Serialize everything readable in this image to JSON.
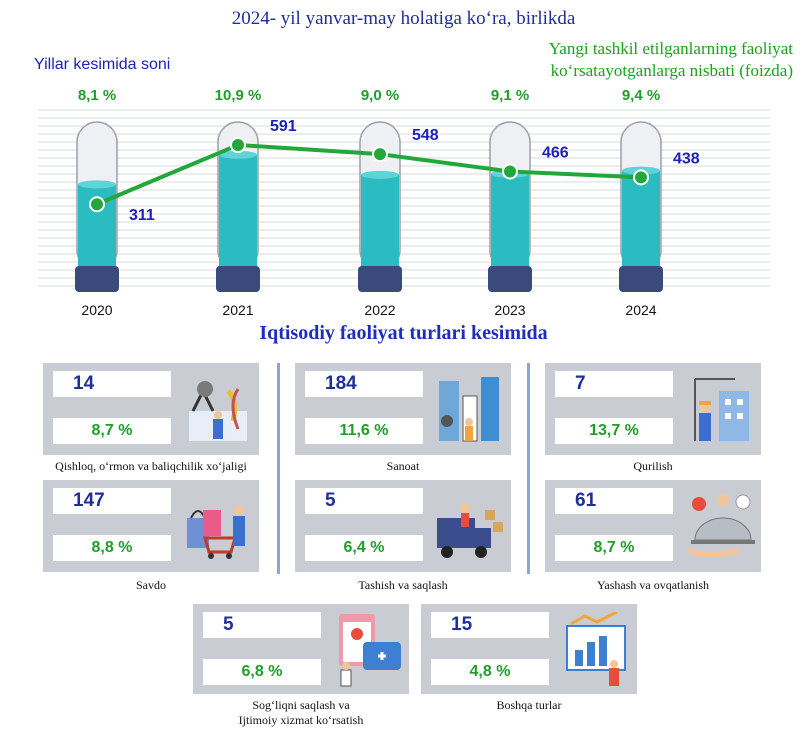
{
  "title": "2024- yil yanvar-may holatiga ko‘ra, birlikda",
  "left_subtitle": "Yillar kesimida soni",
  "right_subtitle": [
    "Yangi tashkil etilganlarning faoliyat",
    "ko‘rsatayotganlarga nisbati (foizda)"
  ],
  "colors": {
    "title": "#1f2f99",
    "percent": "#1f9e2a",
    "line": "#22a83a",
    "tube_fill": "#2bbcc2",
    "tube_base": "#3a4a7a",
    "card_bg": "#c9ccd3"
  },
  "chart_data": {
    "type": "bar",
    "categories": [
      "2020",
      "2021",
      "2022",
      "2023",
      "2024"
    ],
    "series": [
      {
        "values": [
          311,
          591,
          548,
          466,
          438
        ]
      },
      {
        "values": [
          8.1,
          10.9,
          9.0,
          9.1,
          9.4
        ]
      }
    ],
    "value_labels": [
      "311",
      "591",
      "548",
      "466",
      "438"
    ],
    "percent_labels": [
      "8,1 %",
      "10,9 %",
      "9,0 %",
      "9,1 %",
      "9,4 %"
    ],
    "ylim_count": [
      0,
      700
    ],
    "ylim_percent": [
      0,
      14
    ],
    "grid": true
  },
  "section_title": "Iqtisodiy faoliyat turlari kesimida",
  "categories": [
    {
      "count": "14",
      "percent": "8,7 %",
      "label": "Qishloq, o‘rmon va baliqchilik xo‘jaligi",
      "icon": "farming-illustration"
    },
    {
      "count": "184",
      "percent": "11,6 %",
      "label": "Sanoat",
      "icon": "industry-illustration"
    },
    {
      "count": "7",
      "percent": "13,7 %",
      "label": "Qurilish",
      "icon": "construction-illustration"
    },
    {
      "count": "147",
      "percent": "8,8 %",
      "label": "Savdo",
      "icon": "shopping-illustration"
    },
    {
      "count": "5",
      "percent": "6,4 %",
      "label": "Tashish va saqlash",
      "icon": "delivery-illustration"
    },
    {
      "count": "61",
      "percent": "8,7 %",
      "label": "Yashash va ovqatlanish",
      "icon": "food-service-illustration"
    },
    {
      "count": "5",
      "percent": "6,8 %",
      "label": "Sog‘liqni saqlash va",
      "label2": "Ijtimoiy xizmat ko‘rsatish",
      "icon": "healthcare-illustration"
    },
    {
      "count": "15",
      "percent": "4,8 %",
      "label": "Boshqa turlar",
      "icon": "analytics-illustration"
    }
  ]
}
